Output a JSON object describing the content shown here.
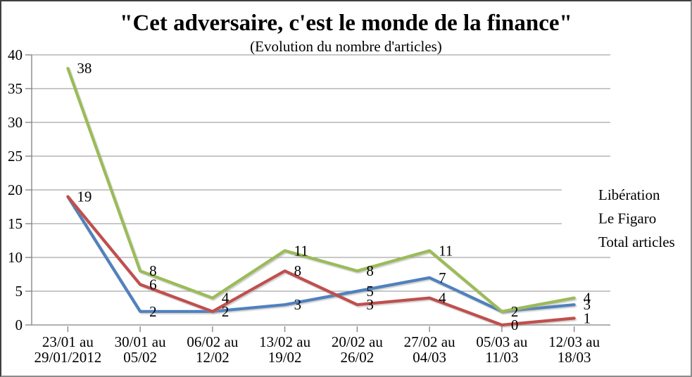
{
  "frame": {
    "background": "#ffffff",
    "border_dark": "#3f3f3f",
    "border_light": "#8c8c8c"
  },
  "chart_data": {
    "type": "line",
    "title": "\"Cet adversaire, c'est le monde de la finance\"",
    "subtitle": "(Evolution du nombre d'articles)",
    "categories": [
      [
        "23/01 au",
        "29/01/2012"
      ],
      [
        "30/01 au",
        "05/02"
      ],
      [
        "06/02 au",
        "12/02"
      ],
      [
        "13/02 au",
        "19/02"
      ],
      [
        "20/02 au",
        "26/02"
      ],
      [
        "27/02 au",
        "04/03"
      ],
      [
        "05/03 au",
        "11/03"
      ],
      [
        "12/03 au",
        "18/03"
      ]
    ],
    "series": [
      {
        "name": "Libération",
        "color": "#4F81BD",
        "values": [
          19,
          2,
          2,
          3,
          5,
          7,
          2,
          3
        ]
      },
      {
        "name": "Le Figaro",
        "color": "#C0504D",
        "values": [
          19,
          6,
          2,
          8,
          3,
          4,
          0,
          1
        ]
      },
      {
        "name": "Total articles",
        "color": "#9BBB59",
        "values": [
          38,
          8,
          4,
          11,
          8,
          11,
          2,
          4
        ]
      }
    ],
    "ylim": [
      0,
      40
    ],
    "ytick_step": 5,
    "yticks": [
      0,
      5,
      10,
      15,
      20,
      25,
      30,
      35,
      40
    ],
    "grid": true,
    "data_labels": true,
    "legend_position": "right-overlay",
    "xlabel": "",
    "ylabel": "",
    "axis_color": "#808080",
    "gridline_color": "#909090",
    "label_color": "#000000"
  }
}
